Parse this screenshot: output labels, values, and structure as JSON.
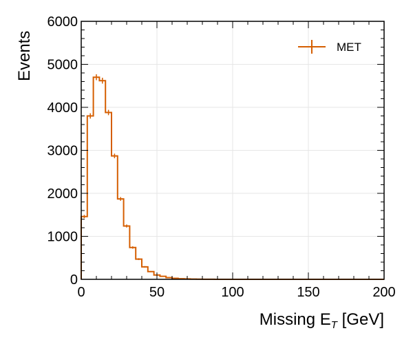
{
  "chart_data": {
    "type": "histogram",
    "xlabel": "Missing E",
    "xlabel_sub": "T",
    "xlabel_unit": " [GeV]",
    "ylabel": "Events",
    "xlim": [
      0,
      200
    ],
    "ylim": [
      0,
      6000
    ],
    "x_ticks": [
      0,
      50,
      100,
      150,
      200
    ],
    "x_tick_labels": [
      "0",
      "50",
      "100",
      "150",
      "200"
    ],
    "y_ticks": [
      0,
      1000,
      2000,
      3000,
      4000,
      5000,
      6000
    ],
    "y_tick_labels": [
      "0",
      "1000",
      "2000",
      "3000",
      "4000",
      "5000",
      "6000"
    ],
    "grid": true,
    "legend_position": "top-right",
    "series": [
      {
        "name": "MET",
        "color": "#d55e00",
        "bin_edges": [
          0,
          4,
          8,
          12,
          16,
          20,
          24,
          28,
          32,
          36,
          40,
          44,
          48,
          52,
          56,
          60,
          64,
          68,
          72,
          76,
          80,
          84,
          88,
          92,
          96,
          100,
          104,
          108,
          112,
          116,
          120,
          124,
          128,
          132,
          136,
          140,
          144,
          148,
          152,
          156,
          160,
          164,
          168,
          172,
          176,
          180,
          184,
          188,
          192,
          196,
          200
        ],
        "values": [
          1460,
          3800,
          4700,
          4620,
          3880,
          2870,
          1870,
          1240,
          740,
          470,
          290,
          180,
          100,
          70,
          40,
          25,
          15,
          10,
          7,
          4,
          3,
          2,
          1,
          1,
          1,
          0,
          0,
          0,
          0,
          0,
          0,
          0,
          0,
          0,
          0,
          0,
          0,
          0,
          0,
          0,
          0,
          0,
          0,
          0,
          0,
          0,
          0,
          0,
          0,
          0
        ]
      }
    ]
  }
}
